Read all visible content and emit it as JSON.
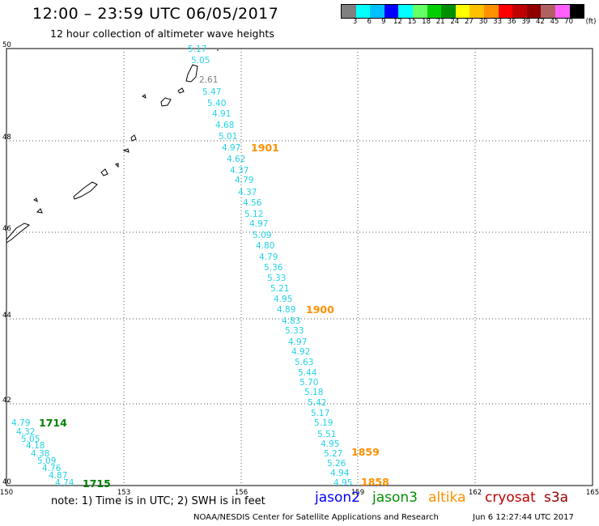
{
  "title": "12:00 – 23:59 UTC 06/05/2017",
  "subtitle": "12 hour collection of altimeter wave heights",
  "legend": {
    "colors": [
      "#808080",
      "#00ffff",
      "#00c0ff",
      "#0000ff",
      "#00ffff",
      "#66ff66",
      "#00d000",
      "#009000",
      "#ffff00",
      "#ffc000",
      "#ff9000",
      "#ff0000",
      "#c00000",
      "#900000",
      "#b06060",
      "#ff60ff",
      "#000000"
    ],
    "labels": [
      "3",
      "6",
      "9",
      "12",
      "15",
      "18",
      "21",
      "24",
      "27",
      "30",
      "33",
      "36",
      "39",
      "42",
      "45",
      "70",
      "(ft)"
    ]
  },
  "axes": {
    "x_ticks": [
      "150",
      "153",
      "156",
      "159",
      "162",
      "165"
    ],
    "y_ticks": [
      "50",
      "48",
      "46",
      "44",
      "42",
      "40"
    ]
  },
  "tracks": {
    "main_color": "#22d3e6",
    "main_values": [
      "5.17",
      "5.05",
      "2.61",
      "5.47",
      "5.40",
      "4.91",
      "4.68",
      "5.01",
      "4.97",
      "4.62",
      "4.37",
      "4.79",
      "4.37",
      "4.56",
      "5.12",
      "4.97",
      "5.09",
      "4.80",
      "4.79",
      "5.36",
      "5.33",
      "5.21",
      "4.95",
      "4.89",
      "4.83",
      "5.33",
      "4.97",
      "4.92",
      "5.63",
      "5.44",
      "5.70",
      "5.18",
      "5.42",
      "5.17",
      "5.19",
      "5.51",
      "4.95",
      "5.27",
      "5.26",
      "4.94",
      "4.95"
    ],
    "west_values": [
      "4.79",
      "4.32",
      "5.05",
      "4.18",
      "4.38",
      "5.09",
      "4.76",
      "4.87",
      "4.74"
    ],
    "time_labels": [
      {
        "text": "1901",
        "color": "#ff9000"
      },
      {
        "text": "1900",
        "color": "#ff9000"
      },
      {
        "text": "1859",
        "color": "#ff9000"
      },
      {
        "text": "1858",
        "color": "#ff9000"
      },
      {
        "text": "1714",
        "color": "#008000"
      },
      {
        "text": "1715",
        "color": "#008000"
      }
    ]
  },
  "footer": {
    "note": "note: 1) Time is in UTC; 2) SWH is in feet",
    "satellites": [
      {
        "name": "jason2",
        "color": "#0000ff"
      },
      {
        "name": "jason3",
        "color": "#009000"
      },
      {
        "name": "altika",
        "color": "#ff9000"
      },
      {
        "name": "cryosat",
        "color": "#c00000"
      },
      {
        "name": "s3a",
        "color": "#900000"
      }
    ],
    "credit": "NOAA/NESDIS Center for Satellite Applications and Research",
    "generated": "Jun  6 12:27:44 UTC 2017"
  }
}
